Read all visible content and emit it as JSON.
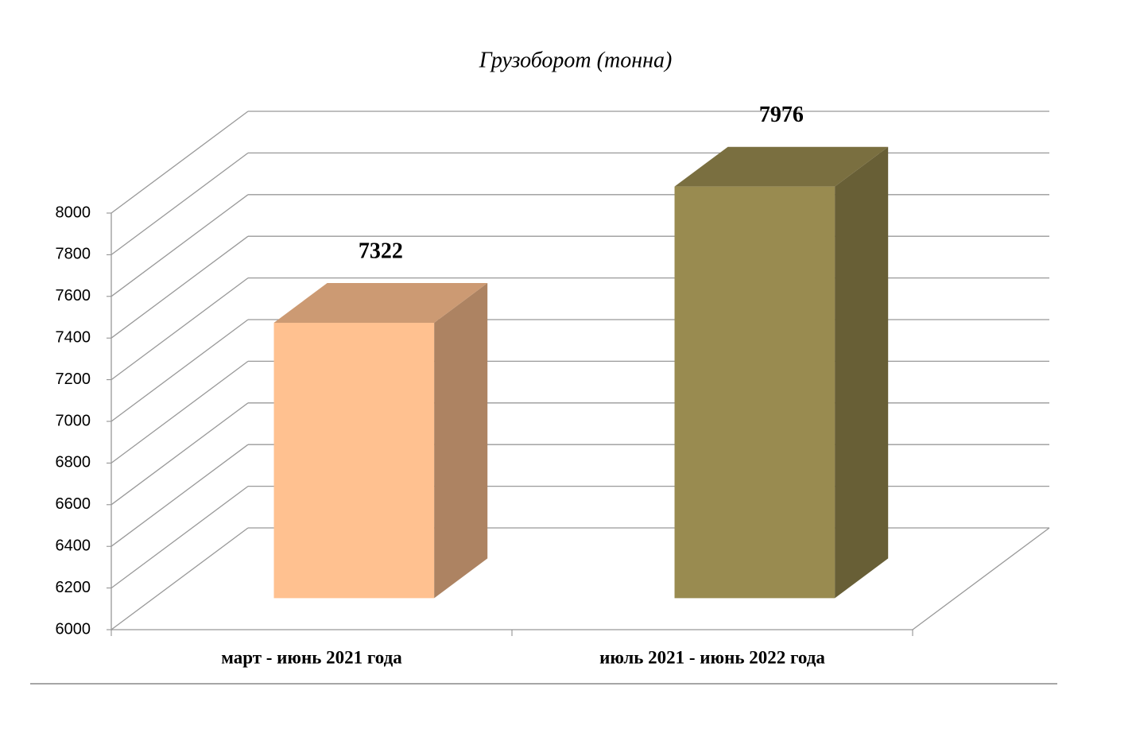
{
  "chart_data": {
    "type": "bar3d",
    "title": "Грузоборот (тонна)",
    "categories": [
      "март - июнь 2021 года",
      "июль 2021 - июнь 2022 года"
    ],
    "values": [
      7322,
      7976
    ],
    "colors": [
      "#ffc190",
      "#998b50"
    ],
    "ylim": [
      6000,
      8000
    ],
    "yticks": [
      6000,
      6200,
      6400,
      6600,
      6800,
      7000,
      7200,
      7400,
      7600,
      7800,
      8000
    ],
    "grid": true
  }
}
